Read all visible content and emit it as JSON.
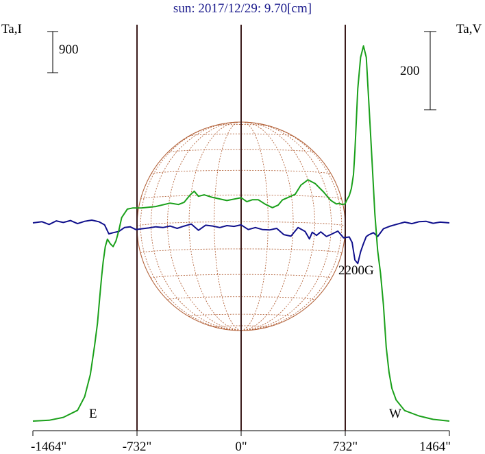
{
  "title": "sun: 2017/12/29: 9.70[cm]",
  "left_axis_label": "Ta,I",
  "right_axis_label": "Ta,V",
  "scale_left_label": "900",
  "scale_right_label": "200",
  "east_label": "E",
  "west_label": "W",
  "annotation": "2200G",
  "colors": {
    "intensity": "#1aa01a",
    "polarization": "#10108c",
    "disk": "#b4643c",
    "axes": "#3a1a1a",
    "title": "#1a1a8c"
  },
  "chart_data": {
    "type": "line",
    "title": "sun: 2017/12/29: 9.70[cm]",
    "xlim": [
      -1464,
      1464
    ],
    "xticks": [
      -1464,
      -732,
      0,
      732,
      1464
    ],
    "xtick_labels": [
      "-1464\"",
      "-732\"",
      "0\"",
      "732\"",
      "1464\""
    ],
    "limb_positions": [
      -732,
      0,
      732
    ],
    "scale_bars": [
      {
        "axis": "Ta,I",
        "value": 900
      },
      {
        "axis": "Ta,V",
        "value": 200
      }
    ],
    "annotations": [
      {
        "text": "2200G",
        "x": 820
      }
    ],
    "series": [
      {
        "name": "Ta,I",
        "x": [
          -1464,
          -1350,
          -1250,
          -1150,
          -1100,
          -1060,
          -1030,
          -1010,
          -1000,
          -990,
          -980,
          -970,
          -955,
          -940,
          -920,
          -900,
          -880,
          -860,
          -840,
          -800,
          -760,
          -700,
          -600,
          -500,
          -440,
          -400,
          -360,
          -330,
          -300,
          -260,
          -200,
          -100,
          0,
          40,
          80,
          120,
          170,
          220,
          260,
          290,
          330,
          380,
          420,
          470,
          520,
          580,
          610,
          630,
          650,
          670,
          690,
          710,
          730,
          745,
          760,
          775,
          790,
          800,
          820,
          840,
          860,
          880,
          900,
          920,
          940,
          960,
          980,
          1000,
          1020,
          1040,
          1060,
          1090,
          1150,
          1250,
          1350,
          1464
        ],
        "y": [
          0,
          30,
          130,
          380,
          860,
          1640,
          2660,
          3440,
          4000,
          4570,
          5120,
          5600,
          6140,
          6400,
          6240,
          6140,
          6340,
          6700,
          7160,
          7460,
          7500,
          7500,
          7550,
          7670,
          7620,
          7700,
          7950,
          8090,
          7910,
          7960,
          7870,
          7760,
          7860,
          7720,
          7790,
          7790,
          7630,
          7510,
          7600,
          7780,
          7870,
          7980,
          8300,
          8490,
          8360,
          8060,
          7880,
          7770,
          7700,
          7640,
          7660,
          7620,
          7640,
          7800,
          7930,
          8180,
          8670,
          9500,
          11700,
          12800,
          13200,
          12800,
          11000,
          9200,
          7300,
          6000,
          5200,
          4100,
          2600,
          1700,
          1150,
          740,
          370,
          180,
          60,
          0
        ]
      },
      {
        "name": "Ta,V",
        "x": [
          -1464,
          -1400,
          -1350,
          -1300,
          -1250,
          -1200,
          -1150,
          -1100,
          -1050,
          -1000,
          -960,
          -930,
          -900,
          -860,
          -820,
          -780,
          -740,
          -700,
          -650,
          -600,
          -550,
          -500,
          -450,
          -400,
          -350,
          -300,
          -250,
          -200,
          -150,
          -100,
          -50,
          0,
          50,
          100,
          150,
          200,
          250,
          300,
          350,
          400,
          450,
          480,
          500,
          530,
          560,
          600,
          640,
          680,
          720,
          760,
          780,
          800,
          820,
          840,
          860,
          880,
          900,
          930,
          960,
          1000,
          1050,
          1100,
          1150,
          1200,
          1250,
          1300,
          1350,
          1400,
          1464
        ],
        "y": [
          0,
          3,
          -4,
          5,
          1,
          6,
          -2,
          4,
          7,
          3,
          -5,
          -28,
          -25,
          -22,
          -12,
          -10,
          -17,
          -15,
          -13,
          -10,
          -12,
          -8,
          -14,
          -8,
          -3,
          -19,
          -6,
          -8,
          -12,
          -7,
          -9,
          -5,
          -17,
          -12,
          -17,
          -18,
          -14,
          -30,
          -34,
          -12,
          -22,
          -41,
          -24,
          -32,
          -23,
          -35,
          -28,
          -21,
          -38,
          -36,
          -50,
          -95,
          -104,
          -74,
          -53,
          -35,
          -30,
          -25,
          -35,
          -15,
          -8,
          -3,
          2,
          -2,
          3,
          4,
          -1,
          2,
          0
        ]
      }
    ]
  }
}
